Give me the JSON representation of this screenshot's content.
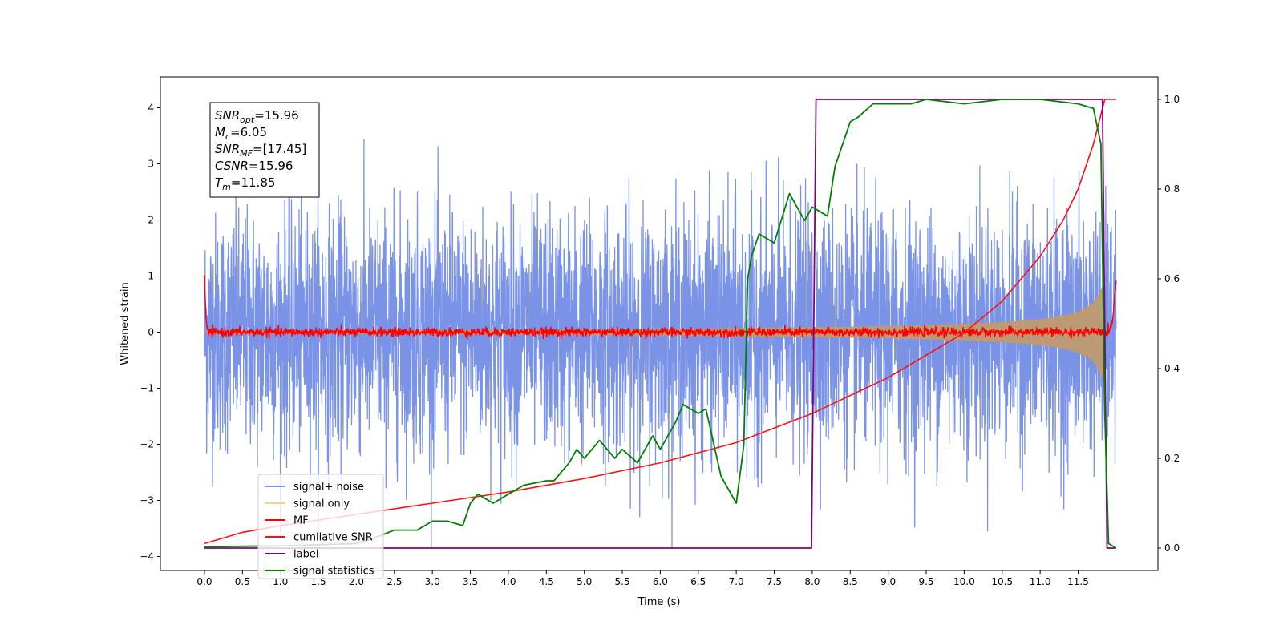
{
  "chart_data": {
    "type": "line",
    "xlabel": "Time (s)",
    "ylabel": "Whitened strain",
    "xlim": [
      -0.58,
      12.55
    ],
    "ylim": [
      -4.25,
      4.55
    ],
    "y2lim": [
      -0.05,
      1.05
    ],
    "x_ticks": [
      0.0,
      0.5,
      1.0,
      1.5,
      2.0,
      2.5,
      3.0,
      3.5,
      4.0,
      4.5,
      5.0,
      5.5,
      6.0,
      6.5,
      7.0,
      7.5,
      8.0,
      8.5,
      9.0,
      9.5,
      10.0,
      10.5,
      11.0,
      11.5
    ],
    "x_tick_labels": [
      "0.0",
      "0.5",
      "1.0",
      "1.5",
      "2.0",
      "2.5",
      "3.0",
      "3.5",
      "4.0",
      "4.5",
      "5.0",
      "5.5",
      "6.0",
      "6.5",
      "7.0",
      "7.5",
      "8.0",
      "8.5",
      "9.0",
      "9.5",
      "10.0",
      "10.5",
      "11.0",
      "11.5"
    ],
    "y_ticks": [
      -4,
      -3,
      -2,
      -1,
      0,
      1,
      2,
      3,
      4
    ],
    "y_tick_labels": [
      "−4",
      "−3",
      "−2",
      "−1",
      "0",
      "1",
      "2",
      "3",
      "4"
    ],
    "y2_ticks": [
      0.0,
      0.2,
      0.4,
      0.6,
      0.8,
      1.0
    ],
    "y2_tick_labels": [
      "0.0",
      "0.2",
      "0.4",
      "0.6",
      "0.8",
      "1.0"
    ],
    "grid": false,
    "legend_position": "lower-left",
    "colors": {
      "signal_noise": "#7b93e6",
      "signal_only": "#c09a70",
      "signal_only_legend": "#f5d48a",
      "mf": "#ff0000",
      "cumulative_snr": "#ff1010",
      "label": "#800080",
      "statistics": "#008000"
    },
    "annotation": {
      "lines": [
        {
          "sym": "SNR",
          "sub": "opt",
          "val": "=15.96"
        },
        {
          "sym": "M",
          "sub": "c",
          "val": "=6.05"
        },
        {
          "sym": "SNR",
          "sub": "MF",
          "val": "=[17.45]"
        },
        {
          "sym": "CSNR",
          "sub": "",
          "val": "=15.96"
        },
        {
          "sym": "T",
          "sub": "m",
          "val": "=11.85"
        }
      ]
    },
    "series": [
      {
        "name": "signal+ noise",
        "axis": "left",
        "style": "noise band",
        "description_values": {
          "x": [
            0.0,
            12.0
          ],
          "typical_range": [
            -2.2,
            2.2
          ],
          "max": 3.65,
          "min": -3.85
        }
      },
      {
        "name": "signal only",
        "axis": "left",
        "style": "chirp envelope",
        "x": [
          0.0,
          2.0,
          4.0,
          6.0,
          8.0,
          9.0,
          10.0,
          10.5,
          11.0,
          11.3,
          11.5,
          11.7,
          11.8,
          11.85
        ],
        "amplitude": [
          0.02,
          0.03,
          0.04,
          0.06,
          0.09,
          0.11,
          0.15,
          0.18,
          0.23,
          0.29,
          0.36,
          0.52,
          0.75,
          0.9
        ]
      },
      {
        "name": "MF",
        "axis": "left",
        "style": "noisy near zero",
        "x": [
          0.0,
          0.02,
          0.05,
          11.9,
          11.95,
          12.0
        ],
        "y": [
          1.0,
          0.2,
          0.0,
          0.0,
          0.2,
          0.9
        ]
      },
      {
        "name": "cumilative SNR",
        "axis": "right",
        "x": [
          0.0,
          0.5,
          1.0,
          2.0,
          3.0,
          4.0,
          5.0,
          6.0,
          7.0,
          8.0,
          9.0,
          10.0,
          10.5,
          11.0,
          11.3,
          11.5,
          11.7,
          11.85,
          12.0
        ],
        "y": [
          0.01,
          0.035,
          0.05,
          0.075,
          0.1,
          0.125,
          0.155,
          0.19,
          0.235,
          0.3,
          0.38,
          0.48,
          0.55,
          0.65,
          0.73,
          0.8,
          0.9,
          1.0,
          1.0
        ]
      },
      {
        "name": "label",
        "axis": "right",
        "x": [
          0.0,
          7.99,
          8.05,
          11.82,
          11.88,
          12.0
        ],
        "y": [
          0.0,
          0.0,
          1.0,
          1.0,
          0.0,
          0.0
        ]
      },
      {
        "name": "signal statistics",
        "axis": "right",
        "x": [
          0.0,
          1.0,
          2.0,
          2.2,
          2.5,
          2.8,
          3.0,
          3.2,
          3.4,
          3.5,
          3.6,
          3.8,
          4.0,
          4.2,
          4.5,
          4.6,
          4.8,
          4.9,
          5.0,
          5.2,
          5.4,
          5.5,
          5.7,
          5.9,
          6.0,
          6.2,
          6.3,
          6.5,
          6.6,
          6.8,
          7.0,
          7.1,
          7.15,
          7.2,
          7.3,
          7.5,
          7.7,
          7.9,
          8.0,
          8.2,
          8.3,
          8.5,
          8.6,
          8.8,
          9.0,
          9.3,
          9.5,
          10.0,
          10.5,
          11.0,
          11.5,
          11.7,
          11.8,
          11.85,
          11.9,
          12.0
        ],
        "y": [
          0.003,
          0.005,
          0.01,
          0.02,
          0.04,
          0.04,
          0.06,
          0.06,
          0.05,
          0.1,
          0.12,
          0.1,
          0.12,
          0.14,
          0.15,
          0.15,
          0.19,
          0.22,
          0.2,
          0.24,
          0.2,
          0.22,
          0.19,
          0.25,
          0.22,
          0.28,
          0.32,
          0.3,
          0.31,
          0.16,
          0.1,
          0.23,
          0.6,
          0.65,
          0.7,
          0.68,
          0.79,
          0.73,
          0.76,
          0.74,
          0.85,
          0.95,
          0.96,
          0.99,
          0.99,
          0.99,
          1.0,
          0.99,
          1.0,
          1.0,
          0.99,
          0.98,
          0.9,
          0.3,
          0.01,
          0.0
        ]
      }
    ]
  }
}
